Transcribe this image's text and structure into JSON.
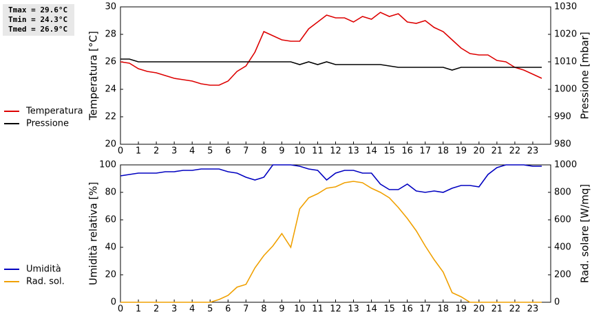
{
  "chart_data": [
    {
      "type": "line",
      "annotations": [
        "Tmax = 29.6°C",
        "Tmin = 24.3°C",
        "Tmed = 26.9°C"
      ],
      "ylabel": "Temperatura [°C]",
      "y2label": "Pressione [mbar]",
      "x": [
        0,
        0.5,
        1,
        1.5,
        2,
        2.5,
        3,
        3.5,
        4,
        4.5,
        5,
        5.5,
        6,
        6.5,
        7,
        7.5,
        8,
        8.5,
        9,
        9.5,
        10,
        10.5,
        11,
        11.5,
        12,
        12.5,
        13,
        13.5,
        14,
        14.5,
        15,
        15.5,
        16,
        16.5,
        17,
        17.5,
        18,
        18.5,
        19,
        19.5,
        20,
        20.5,
        21,
        21.5,
        22,
        22.5,
        23,
        23.5
      ],
      "xlim": [
        0,
        24
      ],
      "xticks": [
        0,
        1,
        2,
        3,
        4,
        5,
        6,
        7,
        8,
        9,
        10,
        11,
        12,
        13,
        14,
        15,
        16,
        17,
        18,
        19,
        20,
        21,
        22,
        23
      ],
      "ylim": [
        20,
        30
      ],
      "yticks": [
        20,
        22,
        24,
        26,
        28,
        30
      ],
      "y2lim": [
        980,
        1030
      ],
      "y2ticks": [
        980,
        990,
        1000,
        1010,
        1020,
        1030
      ],
      "legend": "left",
      "series": [
        {
          "name": "Temperatura",
          "color": "#dd0000",
          "values": [
            26.0,
            25.9,
            25.5,
            25.3,
            25.2,
            25.0,
            24.8,
            24.7,
            24.6,
            24.4,
            24.3,
            24.3,
            24.6,
            25.3,
            25.7,
            26.7,
            28.2,
            27.9,
            27.6,
            27.5,
            27.5,
            28.4,
            28.9,
            29.4,
            29.2,
            29.2,
            28.9,
            29.3,
            29.1,
            29.6,
            29.3,
            29.5,
            28.9,
            28.8,
            29.0,
            28.5,
            28.2,
            27.6,
            27.0,
            26.6,
            26.5,
            26.5,
            26.1,
            26.0,
            25.6,
            25.4,
            25.1,
            24.8
          ]
        },
        {
          "name": "Pressione",
          "color": "#000000",
          "axis": "y2",
          "values": [
            1011,
            1011,
            1010,
            1010,
            1010,
            1010,
            1010,
            1010,
            1010,
            1010,
            1010,
            1010,
            1010,
            1010,
            1010,
            1010,
            1010,
            1010,
            1010,
            1010,
            1009,
            1010,
            1009,
            1010,
            1009,
            1009,
            1009,
            1009,
            1009,
            1009,
            1008.5,
            1008,
            1008,
            1008,
            1008,
            1008,
            1008,
            1007,
            1008,
            1008,
            1008,
            1008,
            1008,
            1008,
            1008,
            1008,
            1008,
            1008
          ]
        }
      ]
    },
    {
      "type": "line",
      "ylabel": "Umidità relativa [%]",
      "y2label": "Rad. solare [W/mq]",
      "x": [
        0,
        0.5,
        1,
        1.5,
        2,
        2.5,
        3,
        3.5,
        4,
        4.5,
        5,
        5.5,
        6,
        6.5,
        7,
        7.5,
        8,
        8.5,
        9,
        9.5,
        10,
        10.5,
        11,
        11.5,
        12,
        12.5,
        13,
        13.5,
        14,
        14.5,
        15,
        15.5,
        16,
        16.5,
        17,
        17.5,
        18,
        18.5,
        19,
        19.5,
        20,
        20.5,
        21,
        21.5,
        22,
        22.5,
        23,
        23.5
      ],
      "xlim": [
        0,
        24
      ],
      "xticks": [
        0,
        1,
        2,
        3,
        4,
        5,
        6,
        7,
        8,
        9,
        10,
        11,
        12,
        13,
        14,
        15,
        16,
        17,
        18,
        19,
        20,
        21,
        22,
        23
      ],
      "ylim": [
        0,
        100
      ],
      "yticks": [
        0,
        20,
        40,
        60,
        80,
        100
      ],
      "y2lim": [
        0,
        1000
      ],
      "y2ticks": [
        0,
        200,
        400,
        600,
        800,
        1000
      ],
      "legend": "left",
      "series": [
        {
          "name": "Umidità",
          "color": "#0000c0",
          "values": [
            92,
            93,
            94,
            94,
            94,
            95,
            95,
            96,
            96,
            97,
            97,
            97,
            95,
            94,
            91,
            89,
            91,
            100,
            100,
            100,
            99,
            97,
            96,
            89,
            94,
            96,
            96,
            94,
            94,
            86,
            82,
            82,
            86,
            81,
            80,
            81,
            80,
            83,
            85,
            85,
            84,
            93,
            98,
            100,
            100,
            100,
            99,
            99
          ]
        },
        {
          "name": "Rad. sol.",
          "color": "#f0a000",
          "axis": "y2",
          "values": [
            0,
            0,
            0,
            0,
            0,
            0,
            0,
            0,
            0,
            0,
            0,
            20,
            50,
            110,
            130,
            250,
            340,
            410,
            500,
            400,
            680,
            760,
            790,
            830,
            840,
            870,
            880,
            870,
            830,
            800,
            760,
            690,
            610,
            520,
            410,
            310,
            220,
            70,
            40,
            0,
            0,
            0,
            0,
            0,
            0,
            0,
            0,
            0
          ]
        }
      ]
    }
  ]
}
